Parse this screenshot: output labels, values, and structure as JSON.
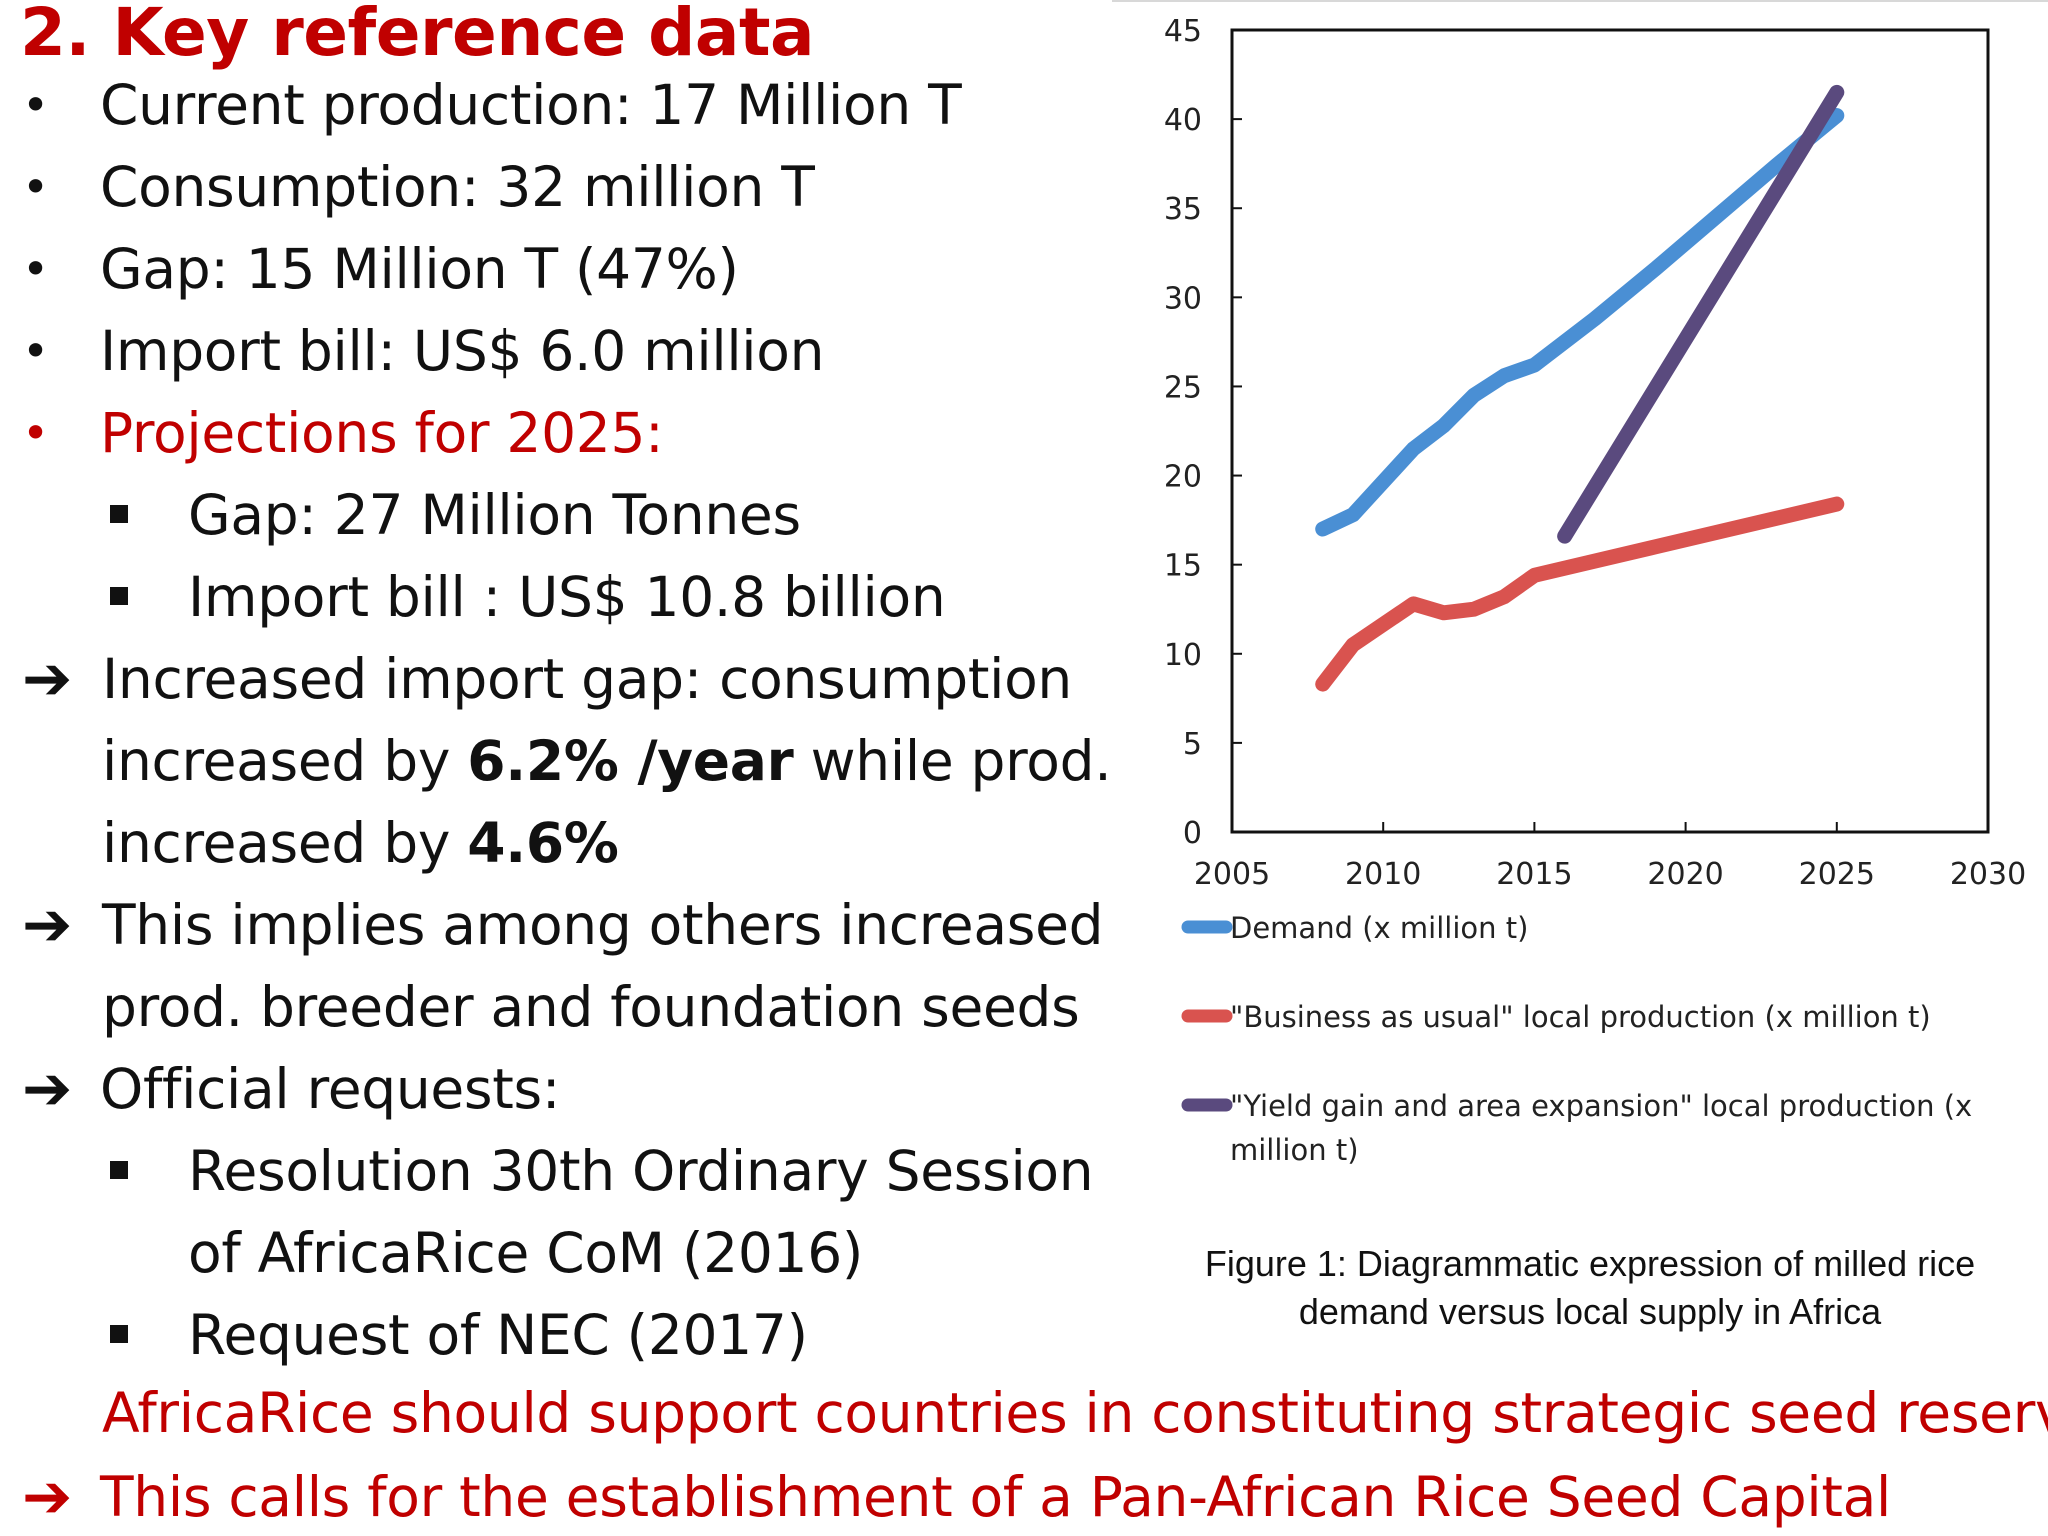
{
  "title": "2. Key reference data",
  "bullets": [
    "Current production: 17 Million T",
    "Consumption: 32 million T",
    "Gap: 15 Million T (47%)",
    "Import bill: US$ 6.0 million"
  ],
  "projections": {
    "heading": "Projections for 2025:",
    "items": [
      "Gap: 27 Million Tonnes",
      "Import bill : US$ 10.8 billion"
    ]
  },
  "arrow1": {
    "a": "Increased import gap: consumption",
    "b1": "increased by ",
    "b2": "6.2% /year",
    "b3": " while prod.",
    "c1": "increased by ",
    "c2": "4.6%"
  },
  "arrow2": {
    "a": "This implies among others increased",
    "b": "prod. breeder and foundation seeds"
  },
  "arrow3": {
    "a": "Official requests:",
    "items": [
      [
        "Resolution 30th Ordinary Session",
        "of AfricaRice CoM (2016)"
      ],
      [
        "Request of NEC (2017)"
      ]
    ]
  },
  "closing": {
    "line1": "AfricaRice should support countries in constituting strategic seed reserves",
    "line2": "This calls for the establishment of a Pan-African Rice Seed Capital"
  },
  "chart_data": {
    "type": "line",
    "x_ticks": [
      2005,
      2010,
      2015,
      2020,
      2025,
      2030
    ],
    "y_ticks": [
      0,
      5,
      10,
      15,
      20,
      25,
      30,
      35,
      40,
      45
    ],
    "xlim": [
      2005,
      2030
    ],
    "ylim": [
      0,
      45
    ],
    "grid": false,
    "legend_position": "bottom",
    "series": [
      {
        "name": "Demand (x million t)",
        "color": "#4a8fd4",
        "x": [
          2008,
          2009,
          2011,
          2012,
          2013,
          2014,
          2015,
          2017,
          2019,
          2021,
          2023,
          2025
        ],
        "y": [
          17.0,
          17.8,
          21.5,
          22.8,
          24.5,
          25.6,
          26.2,
          28.8,
          31.6,
          34.5,
          37.4,
          40.2
        ]
      },
      {
        "name": "\"Business as usual\" local production (x million t)",
        "color": "#d9534f",
        "x": [
          2008,
          2009,
          2011,
          2012,
          2013,
          2014,
          2015,
          2017,
          2019,
          2021,
          2023,
          2025
        ],
        "y": [
          8.3,
          10.5,
          12.8,
          12.3,
          12.5,
          13.2,
          14.4,
          15.2,
          16.0,
          16.8,
          17.6,
          18.4
        ]
      },
      {
        "name": "\"Yield gain and area expansion\" local production (x million t)",
        "color": "#5a4a7e",
        "x": [
          2016,
          2025
        ],
        "y": [
          16.6,
          41.5
        ]
      }
    ],
    "caption": [
      "Figure 1: Diagrammatic expression of milled rice",
      "demand versus local supply in Africa"
    ]
  }
}
